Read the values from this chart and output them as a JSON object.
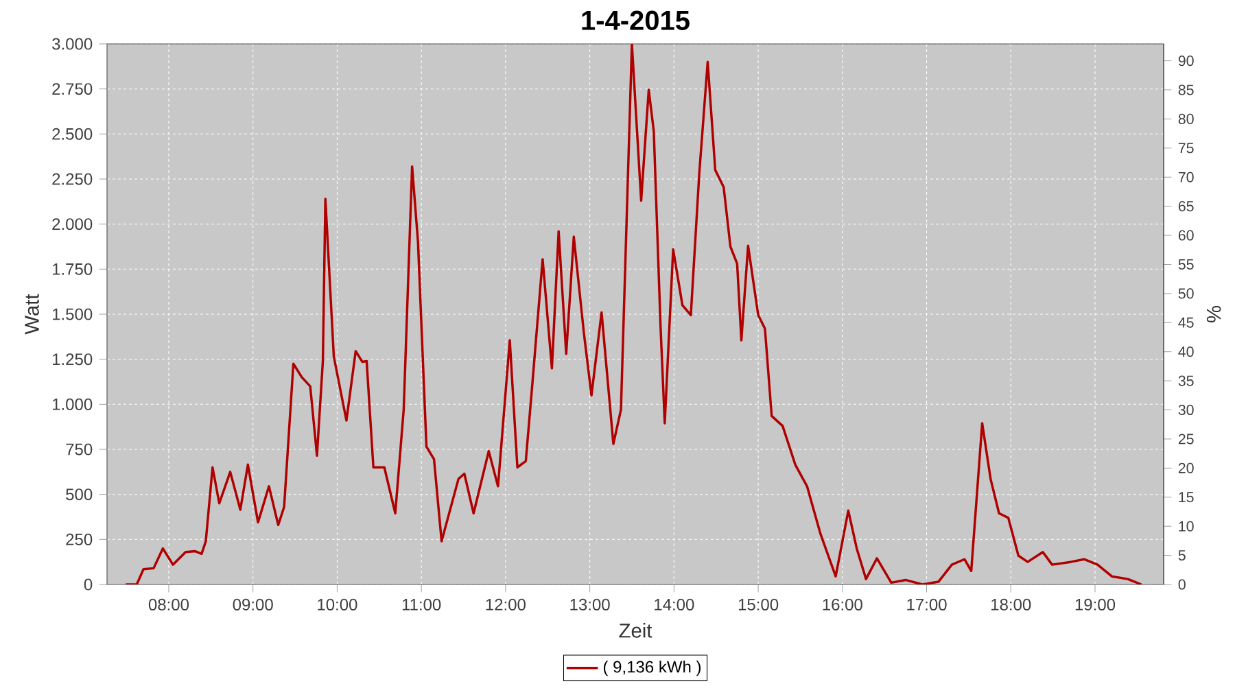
{
  "chart_data": {
    "type": "line",
    "title": "1-4-2015",
    "xlabel": "Zeit",
    "ylabel": "Watt",
    "y2label": "%",
    "x": [
      7.49,
      7.62,
      7.7,
      7.82,
      7.93,
      8.05,
      8.2,
      8.31,
      8.39,
      8.44,
      8.52,
      8.6,
      8.73,
      8.85,
      8.94,
      9.06,
      9.19,
      9.3,
      9.37,
      9.48,
      9.58,
      9.68,
      9.76,
      9.83,
      9.86,
      9.96,
      10.11,
      10.22,
      10.3,
      10.35,
      10.43,
      10.56,
      10.69,
      10.79,
      10.89,
      10.96,
      11.06,
      11.15,
      11.24,
      11.44,
      11.51,
      11.62,
      11.8,
      11.91,
      12.05,
      12.14,
      12.24,
      12.32,
      12.44,
      12.55,
      12.63,
      12.72,
      12.81,
      12.93,
      13.02,
      13.14,
      13.28,
      13.37,
      13.5,
      13.61,
      13.7,
      13.76,
      13.84,
      13.89,
      13.99,
      14.1,
      14.2,
      14.3,
      14.4,
      14.49,
      14.59,
      14.67,
      14.75,
      14.8,
      14.88,
      15.0,
      15.08,
      15.16,
      15.29,
      15.44,
      15.58,
      15.74,
      15.92,
      16.07,
      16.17,
      16.28,
      16.41,
      16.58,
      16.75,
      16.95,
      17.14,
      17.3,
      17.45,
      17.53,
      17.66,
      17.76,
      17.86,
      17.97,
      18.09,
      18.2,
      18.38,
      18.49,
      18.71,
      18.87,
      19.03,
      19.2,
      19.39,
      19.55
    ],
    "series": [
      {
        "name": "( 9,136 kWh )",
        "color": "#b00000",
        "values": [
          0,
          0,
          85,
          90,
          200,
          110,
          180,
          185,
          170,
          240,
          650,
          450,
          625,
          415,
          665,
          345,
          545,
          330,
          430,
          1225,
          1150,
          1100,
          715,
          1240,
          2140,
          1265,
          910,
          1295,
          1235,
          1240,
          650,
          650,
          395,
          970,
          2320,
          1900,
          765,
          695,
          240,
          585,
          615,
          395,
          740,
          545,
          1355,
          650,
          685,
          1125,
          1805,
          1200,
          1960,
          1280,
          1930,
          1395,
          1050,
          1510,
          780,
          970,
          3000,
          2130,
          2745,
          2515,
          1435,
          895,
          1860,
          1550,
          1495,
          2280,
          2900,
          2300,
          2205,
          1875,
          1780,
          1355,
          1880,
          1495,
          1420,
          935,
          880,
          665,
          545,
          280,
          45,
          410,
          200,
          30,
          145,
          10,
          25,
          0,
          15,
          110,
          140,
          75,
          895,
          585,
          395,
          370,
          160,
          125,
          180,
          110,
          125,
          140,
          110,
          45,
          30,
          0
        ]
      }
    ],
    "xlim": [
      7.267,
      19.815
    ],
    "xticks": [
      {
        "value": 8,
        "label": "08:00"
      },
      {
        "value": 9,
        "label": "09:00"
      },
      {
        "value": 10,
        "label": "10:00"
      },
      {
        "value": 11,
        "label": "11:00"
      },
      {
        "value": 12,
        "label": "12:00"
      },
      {
        "value": 13,
        "label": "13:00"
      },
      {
        "value": 14,
        "label": "14:00"
      },
      {
        "value": 15,
        "label": "15:00"
      },
      {
        "value": 16,
        "label": "16:00"
      },
      {
        "value": 17,
        "label": "17:00"
      },
      {
        "value": 18,
        "label": "18:00"
      },
      {
        "value": 19,
        "label": "19:00"
      }
    ],
    "ylim": [
      0,
      3000
    ],
    "yticks": [
      0,
      {
        "value": 250,
        "label": "250"
      },
      {
        "value": 500,
        "label": "500"
      },
      {
        "value": 750,
        "label": "750"
      },
      {
        "value": 1000,
        "label": "1.000"
      },
      {
        "value": 1250,
        "label": "1.250"
      },
      {
        "value": 1500,
        "label": "1.500"
      },
      {
        "value": 1750,
        "label": "1.750"
      },
      {
        "value": 2000,
        "label": "2.000"
      },
      {
        "value": 2250,
        "label": "2.250"
      },
      {
        "value": 2500,
        "label": "2.500"
      },
      {
        "value": 2750,
        "label": "2.750"
      },
      {
        "value": 3000,
        "label": "3.000"
      }
    ],
    "y2lim": [
      0,
      92.9
    ],
    "y2ticks": [
      0,
      5,
      10,
      15,
      20,
      25,
      30,
      35,
      40,
      45,
      50,
      55,
      60,
      65,
      70,
      75,
      80,
      85,
      90
    ],
    "grid": true,
    "legend": "bottom",
    "marker": "none",
    "line_style": "solid"
  }
}
